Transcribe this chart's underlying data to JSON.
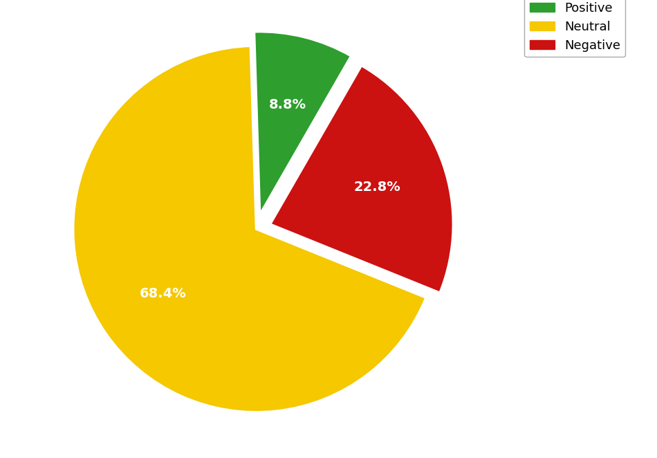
{
  "labels": [
    "Neutral",
    "Positive",
    "Negative"
  ],
  "values": [
    68.4,
    8.8,
    22.8
  ],
  "colors": [
    "#f5c800",
    "#2e9e2e",
    "#cc1111"
  ],
  "explode": [
    0.0,
    0.08,
    0.08
  ],
  "legend_labels": [
    "Positive",
    "Neutral",
    "Negative"
  ],
  "legend_colors": [
    "#2e9e2e",
    "#f5c800",
    "#cc1111"
  ],
  "title_fontsize": 20,
  "label_fontsize": 14,
  "background_color": "#ffffff",
  "wedge_edge_color": "white",
  "wedge_linewidth": 2.5,
  "startangle": -22,
  "pctdistance": 0.62
}
